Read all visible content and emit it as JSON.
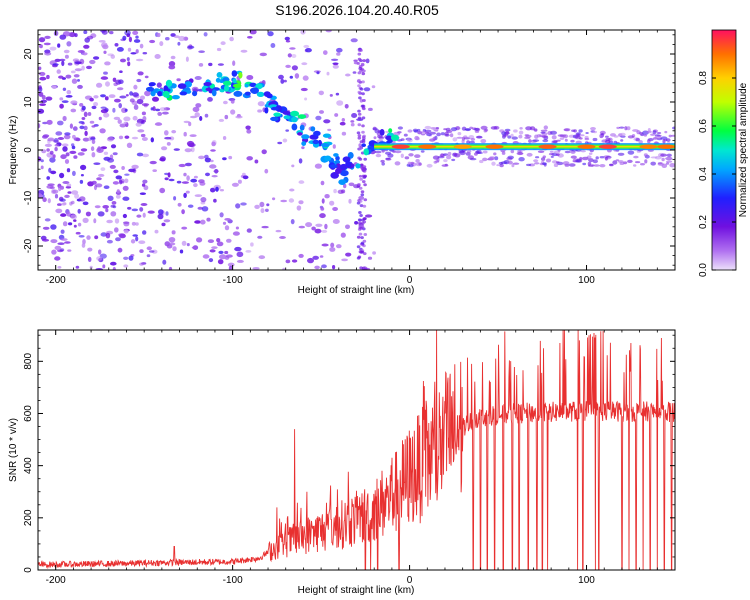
{
  "title": "S196.2026.104.20.40.R05",
  "chart_data": [
    {
      "type": "heatmap",
      "name": "spectrogram",
      "xlabel": "Height of straight line (km)",
      "ylabel": "Frequency (Hz)",
      "xlim": [
        -210,
        150
      ],
      "ylim": [
        -25,
        25
      ],
      "xticks": [
        -200,
        -100,
        0,
        100
      ],
      "yticks": [
        20,
        10,
        0,
        -10,
        -20
      ],
      "colorbar": {
        "label": "Normalized spectral amplitude",
        "range": [
          0,
          1
        ],
        "ticks": [
          0.0,
          0.2,
          0.4,
          0.6,
          0.8
        ],
        "colors": [
          "#e8d8f8",
          "#8a2be2",
          "#3020ff",
          "#00c8ff",
          "#00ff60",
          "#d0ff00",
          "#ffa000",
          "#ff2050"
        ]
      },
      "ridge": [
        {
          "x": -145,
          "f": 13,
          "a": 0.45
        },
        {
          "x": -135,
          "f": 12.5,
          "a": 0.6
        },
        {
          "x": -125,
          "f": 13.5,
          "a": 0.45
        },
        {
          "x": -112,
          "f": 13,
          "a": 0.5
        },
        {
          "x": -105,
          "f": 14,
          "a": 0.55
        },
        {
          "x": -100,
          "f": 13,
          "a": 0.6
        },
        {
          "x": -95,
          "f": 14.5,
          "a": 0.65
        },
        {
          "x": -88,
          "f": 13,
          "a": 0.5
        },
        {
          "x": -80,
          "f": 10,
          "a": 0.45
        },
        {
          "x": -72,
          "f": 7,
          "a": 0.5
        },
        {
          "x": -65,
          "f": 6,
          "a": 0.55
        },
        {
          "x": -58,
          "f": 3,
          "a": 0.45
        },
        {
          "x": -50,
          "f": 2,
          "a": 0.5
        },
        {
          "x": -44,
          "f": -2,
          "a": 0.45
        },
        {
          "x": -40,
          "f": -5,
          "a": 0.4
        },
        {
          "x": -33,
          "f": -2,
          "a": 0.45
        },
        {
          "x": -22,
          "f": 0.5,
          "a": 0.5
        },
        {
          "x": -12,
          "f": 2.5,
          "a": 0.55
        }
      ],
      "band": {
        "x_start": -20,
        "x_end": 150,
        "f": 0.7,
        "a": 0.8
      },
      "band_peaks": [
        {
          "x": -5,
          "a": 0.95
        },
        {
          "x": 10,
          "a": 0.9
        },
        {
          "x": 30,
          "a": 0.85
        },
        {
          "x": 48,
          "a": 0.9
        },
        {
          "x": 78,
          "a": 0.92
        },
        {
          "x": 100,
          "a": 0.9
        },
        {
          "x": 112,
          "a": 0.95
        },
        {
          "x": 135,
          "a": 0.88
        },
        {
          "x": 145,
          "a": 0.9
        }
      ]
    },
    {
      "type": "line",
      "name": "snr",
      "xlabel": "Height of straight line (km)",
      "ylabel": "SNR (10 * v/v)",
      "xlim": [
        -210,
        150
      ],
      "ylim": [
        0,
        920
      ],
      "xticks": [
        -200,
        -100,
        0,
        100
      ],
      "yticks": [
        0,
        200,
        400,
        600,
        800
      ],
      "color": "#e83030",
      "baseline": [
        {
          "x": -210,
          "y": 20
        },
        {
          "x": -160,
          "y": 25
        },
        {
          "x": -140,
          "y": 28
        },
        {
          "x": -100,
          "y": 32
        },
        {
          "x": -85,
          "y": 45
        },
        {
          "x": -75,
          "y": 90
        },
        {
          "x": -60,
          "y": 130
        },
        {
          "x": -40,
          "y": 170
        },
        {
          "x": -25,
          "y": 210
        },
        {
          "x": -10,
          "y": 280
        },
        {
          "x": 0,
          "y": 360
        },
        {
          "x": 10,
          "y": 420
        },
        {
          "x": 20,
          "y": 500
        },
        {
          "x": 30,
          "y": 550
        },
        {
          "x": 40,
          "y": 590
        },
        {
          "x": 60,
          "y": 600
        },
        {
          "x": 100,
          "y": 610
        },
        {
          "x": 150,
          "y": 605
        }
      ],
      "spikes": [
        {
          "x": -133,
          "y": 90
        },
        {
          "x": -65,
          "y": 540
        },
        {
          "x": -75,
          "y": 240
        },
        {
          "x": -58,
          "y": 300
        },
        {
          "x": -45,
          "y": 270
        },
        {
          "x": -25,
          "y": 380
        },
        {
          "x": -10,
          "y": 430
        },
        {
          "x": 35,
          "y": 790
        },
        {
          "x": 45,
          "y": 860
        },
        {
          "x": 62,
          "y": 900
        },
        {
          "x": 75,
          "y": 910
        },
        {
          "x": 85,
          "y": 870
        },
        {
          "x": 96,
          "y": 880
        },
        {
          "x": 108,
          "y": 915
        },
        {
          "x": 125,
          "y": 870
        },
        {
          "x": 140,
          "y": 830
        }
      ],
      "dropouts": [
        -25,
        -22,
        -18,
        -6,
        36,
        40,
        44,
        48,
        53,
        58,
        62,
        67,
        72,
        75,
        78,
        95,
        98,
        105,
        107,
        120,
        124,
        128,
        132,
        136,
        140,
        144,
        148
      ]
    }
  ]
}
